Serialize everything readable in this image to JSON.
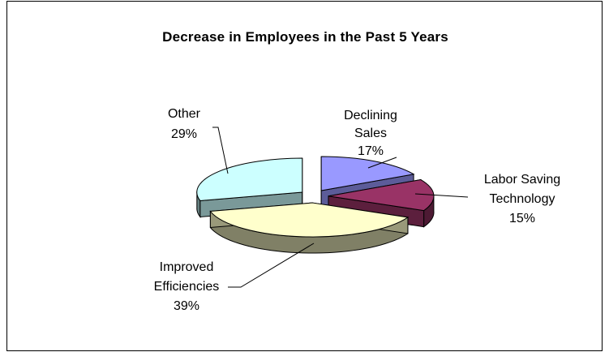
{
  "chart_data": {
    "type": "pie",
    "title": "Decrease in Employees in the Past 5 Years",
    "labels_style": "3d-exploded",
    "slices": [
      {
        "label": "Declining Sales",
        "percent_label": "17%",
        "value": 17,
        "color": "#9999FF"
      },
      {
        "label": "Labor Saving Technology",
        "percent_label": "15%",
        "value": 15,
        "color": "#993366"
      },
      {
        "label": "Improved Efficiencies",
        "percent_label": "39%",
        "value": 39,
        "color": "#FFFFCC"
      },
      {
        "label": "Other",
        "percent_label": "29%",
        "value": 29,
        "color": "#CCFFFF"
      }
    ]
  }
}
